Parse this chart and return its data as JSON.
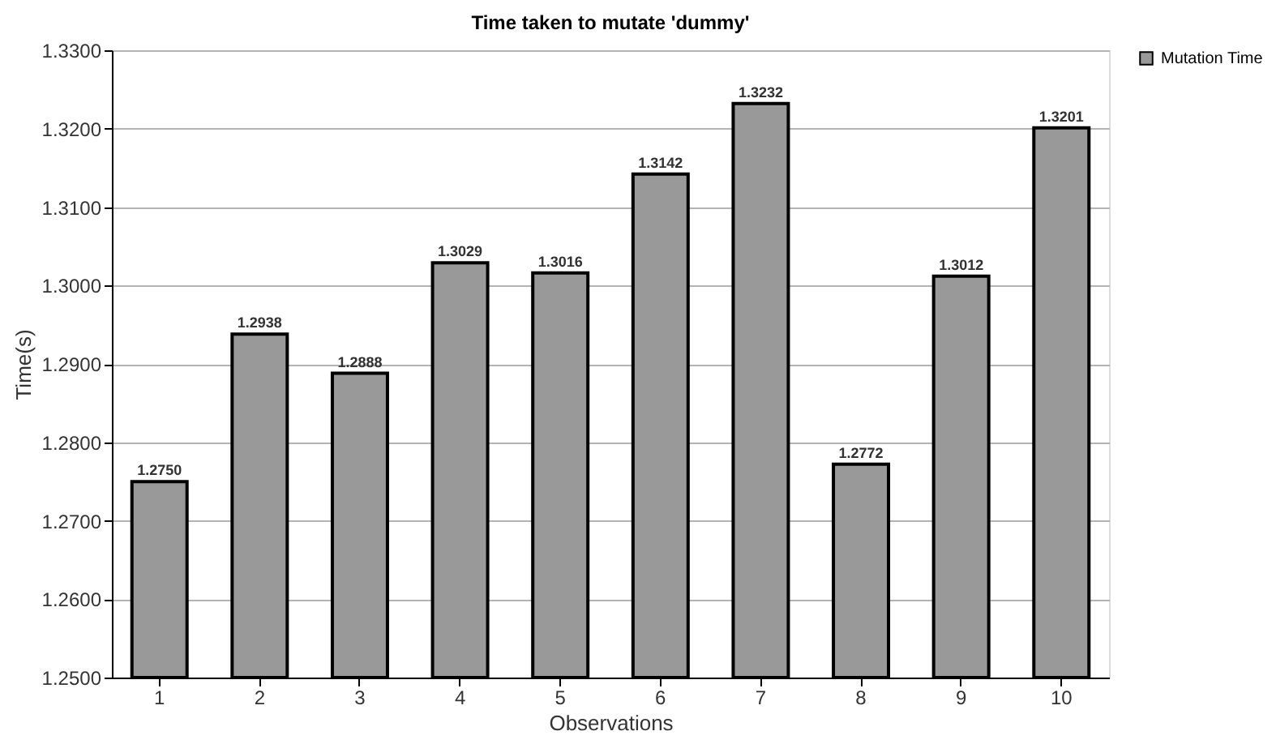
{
  "chart_data": {
    "type": "bar",
    "title": "Time taken to mutate 'dummy'",
    "xlabel": "Observations",
    "ylabel": "Time(s)",
    "categories": [
      "1",
      "2",
      "3",
      "4",
      "5",
      "6",
      "7",
      "8",
      "9",
      "10"
    ],
    "series": [
      {
        "name": "Mutation Time",
        "color": "#999999",
        "values": [
          1.275,
          1.2938,
          1.2888,
          1.3029,
          1.3016,
          1.3142,
          1.3232,
          1.2772,
          1.3012,
          1.3201
        ],
        "value_labels": [
          "1.2750",
          "1.2938",
          "1.2888",
          "1.3029",
          "1.3016",
          "1.3142",
          "1.3232",
          "1.2772",
          "1.3012",
          "1.3201"
        ]
      }
    ],
    "ylim": [
      1.25,
      1.33
    ],
    "yticks": [
      {
        "value": 1.25,
        "label": "1.2500"
      },
      {
        "value": 1.26,
        "label": "1.2600"
      },
      {
        "value": 1.27,
        "label": "1.2700"
      },
      {
        "value": 1.28,
        "label": "1.2800"
      },
      {
        "value": 1.29,
        "label": "1.2900"
      },
      {
        "value": 1.3,
        "label": "1.3000"
      },
      {
        "value": 1.31,
        "label": "1.3100"
      },
      {
        "value": 1.32,
        "label": "1.3200"
      },
      {
        "value": 1.33,
        "label": "1.3300"
      }
    ],
    "grid": "y",
    "legend": "right"
  }
}
